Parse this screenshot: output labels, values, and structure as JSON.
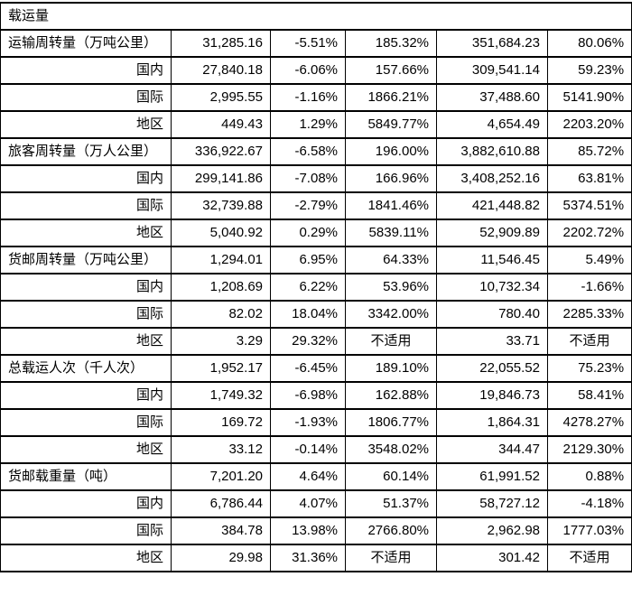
{
  "table": {
    "section_header": "载运量",
    "na_text": "不适用",
    "rows": [
      {
        "label": "运输周转量（万吨公里）",
        "type": "group",
        "values": [
          "31,285.16",
          "-5.51%",
          "185.32%",
          "351,684.23",
          "80.06%"
        ]
      },
      {
        "label": "国内",
        "type": "sub",
        "values": [
          "27,840.18",
          "-6.06%",
          "157.66%",
          "309,541.14",
          "59.23%"
        ]
      },
      {
        "label": "国际",
        "type": "sub",
        "values": [
          "2,995.55",
          "-1.16%",
          "1866.21%",
          "37,488.60",
          "5141.90%"
        ]
      },
      {
        "label": "地区",
        "type": "sub",
        "values": [
          "449.43",
          "1.29%",
          "5849.77%",
          "4,654.49",
          "2203.20%"
        ]
      },
      {
        "label": "旅客周转量（万人公里）",
        "type": "group",
        "values": [
          "336,922.67",
          "-6.58%",
          "196.00%",
          "3,882,610.88",
          "85.72%"
        ]
      },
      {
        "label": "国内",
        "type": "sub",
        "values": [
          "299,141.86",
          "-7.08%",
          "166.96%",
          "3,408,252.16",
          "63.81%"
        ]
      },
      {
        "label": "国际",
        "type": "sub",
        "values": [
          "32,739.88",
          "-2.79%",
          "1841.46%",
          "421,448.82",
          "5374.51%"
        ]
      },
      {
        "label": "地区",
        "type": "sub",
        "values": [
          "5,040.92",
          "0.29%",
          "5839.11%",
          "52,909.89",
          "2202.72%"
        ]
      },
      {
        "label": "货邮周转量（万吨公里）",
        "type": "group",
        "values": [
          "1,294.01",
          "6.95%",
          "64.33%",
          "11,546.45",
          "5.49%"
        ]
      },
      {
        "label": "国内",
        "type": "sub",
        "values": [
          "1,208.69",
          "6.22%",
          "53.96%",
          "10,732.34",
          "-1.66%"
        ]
      },
      {
        "label": "国际",
        "type": "sub",
        "values": [
          "82.02",
          "18.04%",
          "3342.00%",
          "780.40",
          "2285.33%"
        ]
      },
      {
        "label": "地区",
        "type": "sub",
        "values": [
          "3.29",
          "29.32%",
          "不适用",
          "33.71",
          "不适用"
        ]
      },
      {
        "label": "总载运人次（千人次）",
        "type": "group",
        "values": [
          "1,952.17",
          "-6.45%",
          "189.10%",
          "22,055.52",
          "75.23%"
        ]
      },
      {
        "label": "国内",
        "type": "sub",
        "values": [
          "1,749.32",
          "-6.98%",
          "162.88%",
          "19,846.73",
          "58.41%"
        ]
      },
      {
        "label": "国际",
        "type": "sub",
        "values": [
          "169.72",
          "-1.93%",
          "1806.77%",
          "1,864.31",
          "4278.27%"
        ]
      },
      {
        "label": "地区",
        "type": "sub",
        "values": [
          "33.12",
          "-0.14%",
          "3548.02%",
          "344.47",
          "2129.30%"
        ]
      },
      {
        "label": "货邮载重量（吨）",
        "type": "group",
        "values": [
          "7,201.20",
          "4.64%",
          "60.14%",
          "61,991.52",
          "0.88%"
        ]
      },
      {
        "label": "国内",
        "type": "sub",
        "values": [
          "6,786.44",
          "4.07%",
          "51.37%",
          "58,727.12",
          "-4.18%"
        ]
      },
      {
        "label": "国际",
        "type": "sub",
        "values": [
          "384.78",
          "13.98%",
          "2766.80%",
          "2,962.98",
          "1777.03%"
        ]
      },
      {
        "label": "地区",
        "type": "sub",
        "values": [
          "29.98",
          "31.36%",
          "不适用",
          "301.42",
          "不适用"
        ]
      }
    ]
  }
}
